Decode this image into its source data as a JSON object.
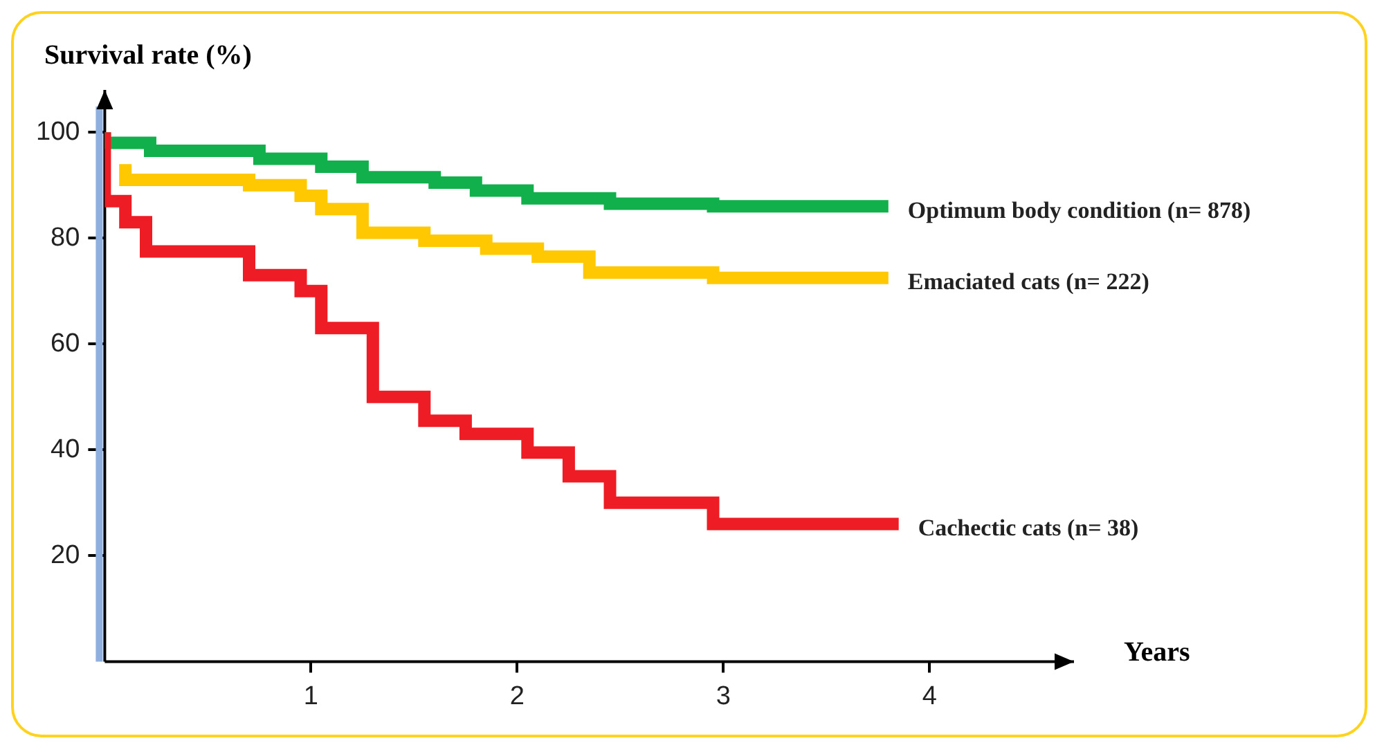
{
  "chart_data": {
    "type": "step",
    "xlabel": "Years",
    "ylabel": "Survival rate (%)",
    "xlim": [
      0,
      4.7
    ],
    "xticks": [
      1,
      2,
      3,
      4
    ],
    "ylim": [
      0,
      108
    ],
    "yticks": [
      20,
      40,
      60,
      80,
      100
    ],
    "grid": false,
    "legend": false,
    "marker": "none",
    "series": [
      {
        "name": "Optimum body condition (n= 878)",
        "color": "#12b04c",
        "x": [
          0,
          0.22,
          0.75,
          1.05,
          1.25,
          1.6,
          1.8,
          2.05,
          2.45,
          2.95,
          3.8
        ],
        "values": [
          100,
          98,
          96.5,
          95,
          93.5,
          91.5,
          90.5,
          89,
          87.5,
          86.5,
          86
        ]
      },
      {
        "name": "Emaciated cats (n= 222)",
        "color": "#ffc800",
        "x": [
          0.1,
          0.7,
          0.95,
          1.05,
          1.25,
          1.55,
          1.85,
          2.1,
          2.35,
          2.95,
          3.45,
          3.8
        ],
        "values": [
          94,
          91,
          90,
          88,
          85.5,
          81,
          79.5,
          78,
          76.5,
          73.5,
          72.5,
          72.5
        ]
      },
      {
        "name": "Cachectic cats (n= 38)",
        "color": "#ee1c25",
        "x": [
          0,
          0.1,
          0.2,
          0.7,
          0.95,
          1.05,
          1.3,
          1.55,
          1.75,
          2.05,
          2.25,
          2.45,
          2.95,
          3.5,
          3.85
        ],
        "values": [
          100,
          87,
          83,
          77.5,
          73,
          70,
          63,
          50,
          45.5,
          43,
          39.5,
          35,
          30,
          26,
          26
        ]
      }
    ]
  }
}
